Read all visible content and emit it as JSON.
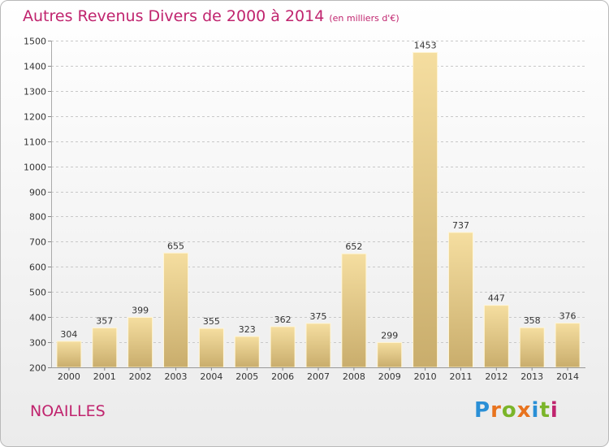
{
  "title": "Autres Revenus Divers de 2000 à 2014",
  "subtitle": "(en milliers d'€)",
  "town": "NOAILLES",
  "logo": "Proxiti",
  "colors": {
    "title": "#c0246e",
    "bar_light": "#f5dea0",
    "bar_dark": "#c9ad6c",
    "grid": "#c8c8c8"
  },
  "chart_data": {
    "type": "bar",
    "title": "Autres Revenus Divers de 2000 à 2014",
    "subtitle": "(en milliers d'€)",
    "categories": [
      "2000",
      "2001",
      "2002",
      "2003",
      "2004",
      "2005",
      "2006",
      "2007",
      "2008",
      "2009",
      "2010",
      "2011",
      "2012",
      "2013",
      "2014"
    ],
    "values": [
      304,
      357,
      399,
      655,
      355,
      323,
      362,
      375,
      652,
      299,
      1453,
      737,
      447,
      358,
      376
    ],
    "ylim": [
      200,
      1500
    ],
    "yticks": [
      200,
      300,
      400,
      500,
      600,
      700,
      800,
      900,
      1000,
      1100,
      1200,
      1300,
      1400,
      1500
    ],
    "grid": true,
    "xlabel": "",
    "ylabel": ""
  }
}
